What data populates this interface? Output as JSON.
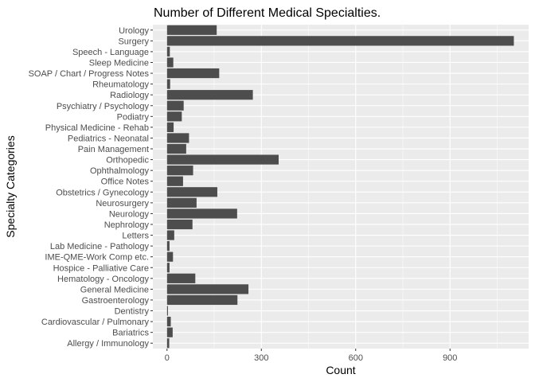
{
  "chart_data": {
    "type": "bar",
    "orientation": "horizontal",
    "title": "Number of Different Medical Specialties.",
    "xlabel": "Count",
    "ylabel": "Specialty Categories",
    "xlim": [
      -45,
      1150
    ],
    "xticks": [
      0,
      300,
      600,
      900
    ],
    "grid": true,
    "legend": "none",
    "categories": [
      "Allergy / Immunology",
      "Bariatrics",
      "Cardiovascular / Pulmonary",
      "Dentistry",
      "Gastroenterology",
      "General Medicine",
      "Hematology - Oncology",
      "Hospice - Palliative Care",
      "IME-QME-Work Comp etc.",
      "Lab Medicine - Pathology",
      "Letters",
      "Nephrology",
      "Neurology",
      "Neurosurgery",
      "Obstetrics / Gynecology",
      "Office Notes",
      "Ophthalmology",
      "Orthopedic",
      "Pain Management",
      "Pediatrics - Neonatal",
      "Physical Medicine - Rehab",
      "Podiatry",
      "Psychiatry / Psychology",
      "Radiology",
      "Rheumatology",
      "SOAP / Chart / Progress Notes",
      "Sleep Medicine",
      "Speech - Language",
      "Surgery",
      "Urology"
    ],
    "values": [
      7,
      18,
      12,
      3,
      224,
      259,
      90,
      8,
      19,
      8,
      23,
      81,
      223,
      94,
      160,
      51,
      83,
      355,
      61,
      70,
      21,
      47,
      53,
      273,
      10,
      166,
      20,
      9,
      1103,
      158
    ]
  },
  "colors": {
    "panel": "#ebebeb",
    "grid_major": "#ffffff",
    "bar": "#4d4d4d",
    "tick": "#333333"
  }
}
